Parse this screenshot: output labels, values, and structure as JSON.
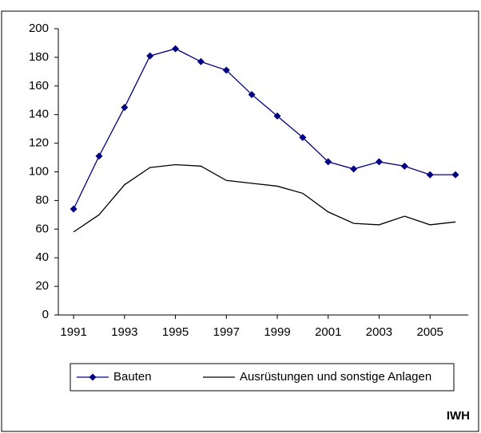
{
  "chart_data": {
    "type": "line",
    "x": [
      1991,
      1992,
      1993,
      1994,
      1995,
      1996,
      1997,
      1998,
      1999,
      2000,
      2001,
      2002,
      2003,
      2004,
      2005,
      2006
    ],
    "series": [
      {
        "name": "Bauten",
        "color": "#000080",
        "marker": "diamond",
        "values": [
          74,
          111,
          145,
          181,
          186,
          177,
          171,
          154,
          139,
          124,
          107,
          102,
          107,
          104,
          98,
          98
        ]
      },
      {
        "name": "Ausrüstungen und sonstige Anlagen",
        "color": "#000000",
        "marker": "none",
        "values": [
          58,
          70,
          91,
          103,
          105,
          104,
          94,
          92,
          90,
          85,
          72,
          64,
          63,
          69,
          63,
          65
        ]
      }
    ],
    "xlim": [
      1990.4,
      2006.5
    ],
    "xticks": [
      1991,
      1993,
      1995,
      1997,
      1999,
      2001,
      2003,
      2005
    ],
    "ylim": [
      0,
      200
    ],
    "yticks": [
      0,
      20,
      40,
      60,
      80,
      100,
      120,
      140,
      160,
      180,
      200
    ],
    "grid": false,
    "legend": "bottom",
    "source": "IWH"
  }
}
